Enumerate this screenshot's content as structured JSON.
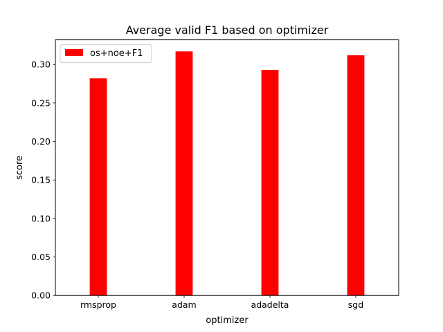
{
  "chart_data": {
    "type": "bar",
    "title": "Average valid F1 based on optimizer",
    "xlabel": "optimizer",
    "ylabel": "score",
    "categories": [
      "rmsprop",
      "adam",
      "adadelta",
      "sgd"
    ],
    "series": [
      {
        "name": "os+noe+F1",
        "values": [
          0.282,
          0.317,
          0.293,
          0.312
        ],
        "color": "#ff0000"
      }
    ],
    "ylim": [
      0,
      0.332
    ],
    "yticks": [
      "0.00",
      "0.05",
      "0.10",
      "0.15",
      "0.20",
      "0.25",
      "0.30"
    ],
    "grid": false,
    "legend_position": "top-left"
  }
}
